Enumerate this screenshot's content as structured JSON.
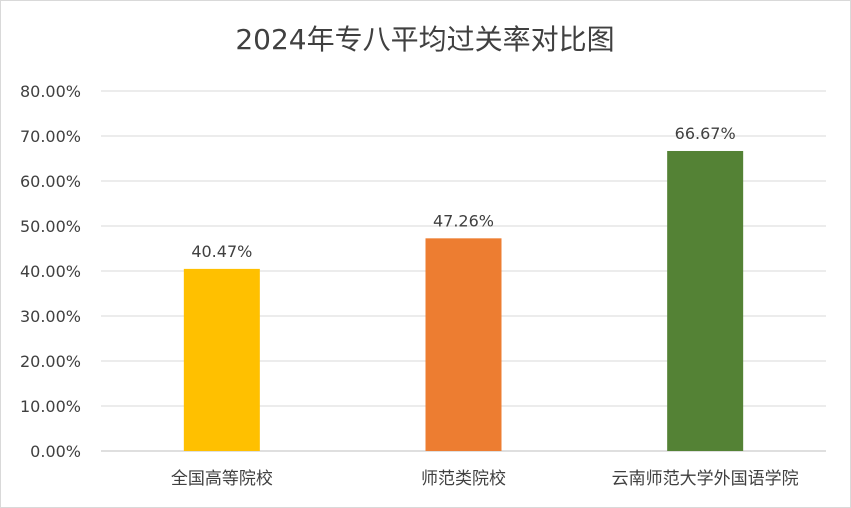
{
  "chart_data": {
    "type": "bar",
    "title": "2024年专八平均过关率对比图",
    "categories": [
      "全国高等院校",
      "师范类院校",
      "云南师范大学外国语学院"
    ],
    "values": [
      40.47,
      47.26,
      66.67
    ],
    "value_labels": [
      "40.47%",
      "47.26%",
      "66.67%"
    ],
    "colors": [
      "#FFC000",
      "#ED7D31",
      "#548235"
    ],
    "ylim": [
      0,
      80
    ],
    "yticks": [
      0,
      10,
      20,
      30,
      40,
      50,
      60,
      70,
      80
    ],
    "ytick_labels": [
      "0.00%",
      "10.00%",
      "20.00%",
      "30.00%",
      "40.00%",
      "50.00%",
      "60.00%",
      "70.00%",
      "80.00%"
    ],
    "grid": true,
    "legend": "none"
  }
}
